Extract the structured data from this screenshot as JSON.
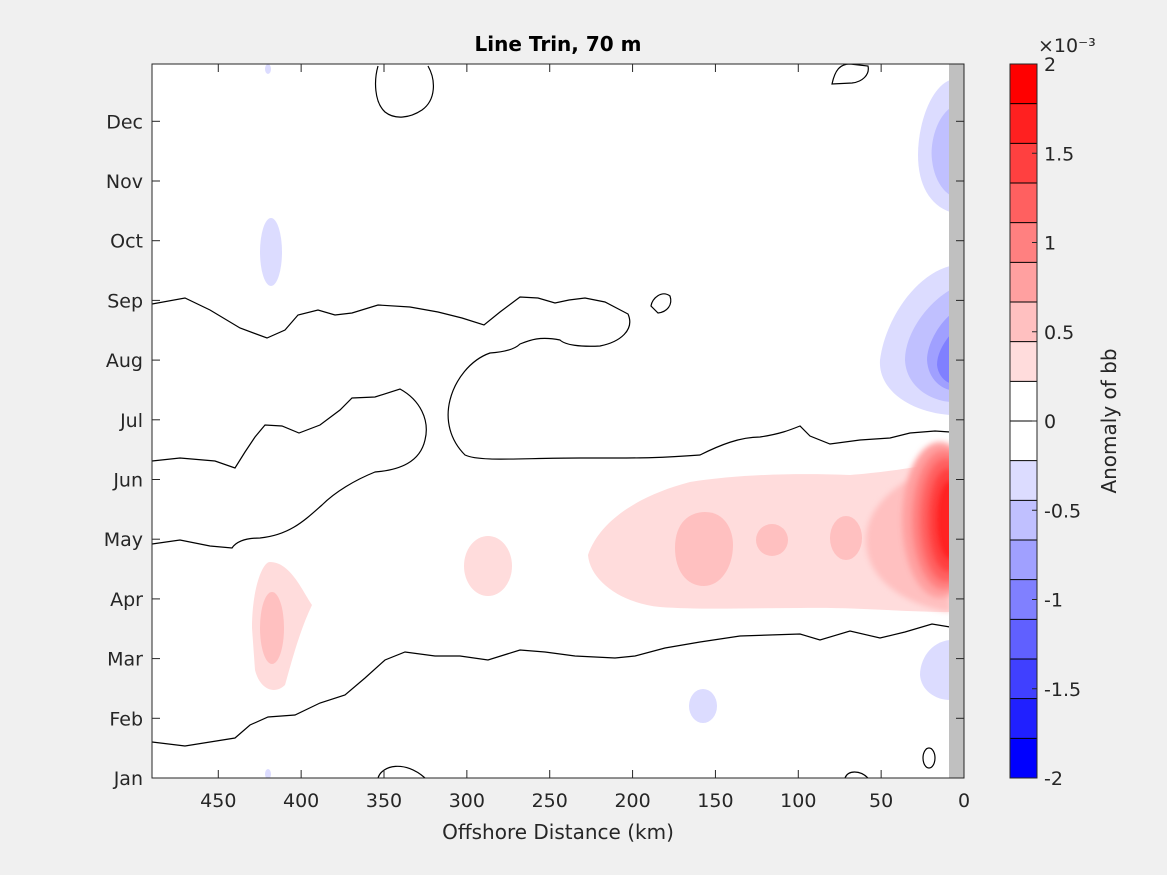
{
  "chart_data": {
    "type": "heatmap",
    "plot_style": "filled contour map",
    "title": "Line Trin, 70 m",
    "xlabel": "Offshore Distance (km)",
    "ylabel": "",
    "x_direction": "reversed",
    "xlim": [
      490,
      0
    ],
    "x_ticks": [
      450,
      400,
      350,
      300,
      250,
      200,
      150,
      100,
      50,
      0
    ],
    "y_ticks": [
      "Jan",
      "Feb",
      "Mar",
      "Apr",
      "May",
      "Jun",
      "Jul",
      "Aug",
      "Sep",
      "Oct",
      "Nov",
      "Dec"
    ],
    "colorbar": {
      "label": "Anomaly of bb",
      "exponent_label": "×10⁻³",
      "scale": 0.001,
      "lim": [
        -2,
        2
      ],
      "tick_values": [
        -2,
        -1.5,
        -1,
        -0.5,
        0,
        0.5,
        1,
        1.5,
        2
      ],
      "tick_labels": [
        "-2",
        "-1.5",
        "-1",
        "-0.5",
        "0",
        "0.5",
        "1",
        "1.5",
        "2"
      ],
      "levels": [
        -2,
        -1.75,
        -1.5,
        -1.25,
        -1,
        -0.75,
        -0.5,
        -0.25,
        0,
        0.25,
        0.5,
        0.75,
        1,
        1.25,
        1.5,
        1.75,
        2
      ],
      "colors": [
        "#0000ff",
        "#2020ff",
        "#4040ff",
        "#6060ff",
        "#8080ff",
        "#a0a0ff",
        "#c0c0ff",
        "#dcdcff",
        "#ffffff",
        "#ffffff",
        "#ffdcdc",
        "#ffc0c0",
        "#ffa0a0",
        "#ff8080",
        "#ff6060",
        "#ff4040",
        "#ff2020",
        "#ff0000"
      ]
    },
    "land_mask": {
      "x_range": [
        10,
        0
      ],
      "color": "#c0c0c0"
    },
    "features": [
      {
        "kind": "positive anomaly",
        "name": "spring nearshore maximum",
        "x": [
          10,
          30
        ],
        "month": [
          4.3,
          6.2
        ],
        "peak": 1.9
      },
      {
        "kind": "positive anomaly",
        "name": "offshore spring band",
        "x": [
          40,
          230
        ],
        "month": [
          4.0,
          5.5
        ],
        "peak": 0.55
      },
      {
        "kind": "positive anomaly",
        "x": [
          395,
          430
        ],
        "month": [
          2.6,
          4.3
        ],
        "peak": 0.55
      },
      {
        "kind": "positive anomaly",
        "x": [
          270,
          300
        ],
        "month": [
          3.9,
          4.9
        ],
        "peak": 0.3
      },
      {
        "kind": "negative anomaly",
        "name": "late summer nearshore minimum",
        "x": [
          10,
          55
        ],
        "month": [
          7.1,
          8.7
        ],
        "peak": -1.1
      },
      {
        "kind": "negative anomaly",
        "x": [
          10,
          40
        ],
        "month": [
          10.7,
          12.4
        ],
        "peak": -0.6
      },
      {
        "kind": "negative anomaly",
        "x": [
          10,
          35
        ],
        "month": [
          2.5,
          3.5
        ],
        "peak": -0.35
      },
      {
        "kind": "negative anomaly",
        "x": [
          410,
          430
        ],
        "month": [
          9.2,
          10.3
        ],
        "peak": -0.35
      },
      {
        "kind": "negative anomaly",
        "x": [
          150,
          170
        ],
        "month": [
          1.8,
          2.3
        ],
        "peak": -0.3
      }
    ]
  },
  "colors": {
    "background": "#f0f0f0",
    "axes": "#ffffff",
    "contour_line": "#000000",
    "land": "#c0c0c0"
  }
}
